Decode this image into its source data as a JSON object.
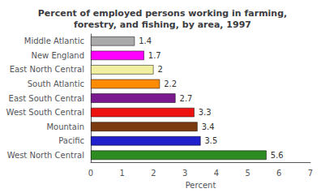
{
  "chart_data": {
    "type": "bar",
    "orientation": "horizontal",
    "title": "Percent of employed persons working in farming,\nforestry, and fishing, by area, 1997",
    "categories": [
      "West North Central",
      "Pacific",
      "Mountain",
      "West South Central",
      "East South Central",
      "South Atlantic",
      "East North Central",
      "New England",
      "Middle Atlantic"
    ],
    "values": [
      5.6,
      3.5,
      3.4,
      3.3,
      2.7,
      2.2,
      2.0,
      1.7,
      1.4
    ],
    "colors": [
      "#2e8b22",
      "#2020cc",
      "#7b3a10",
      "#ee1111",
      "#7b1a8e",
      "#ff8c00",
      "#f0f0a0",
      "#ff00ff",
      "#aaaaaa"
    ],
    "xlabel": "Percent",
    "xlim": [
      0,
      7
    ],
    "xticks": [
      0,
      1,
      2,
      3,
      4,
      5,
      6,
      7
    ],
    "data_labels": true,
    "grid": false
  }
}
